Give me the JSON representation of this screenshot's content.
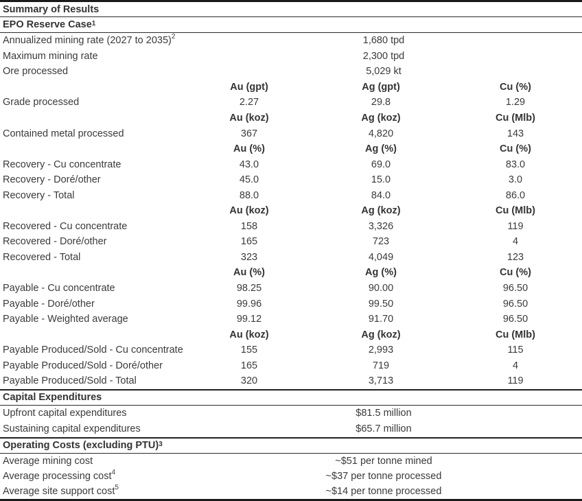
{
  "title": "Summary of Results",
  "colors": {
    "text": "#3a3a3a",
    "header_text": "#333333",
    "rule_line": "#1a1a1a",
    "background": "#ffffff"
  },
  "sections": [
    {
      "header": "EPO Reserve Case",
      "header_sup": "1",
      "rows": [
        {
          "type": "single",
          "label": "Annualized mining rate (2027 to 2035)",
          "sup": "2",
          "value": "1,680 tpd"
        },
        {
          "type": "single",
          "label": "Maximum mining rate",
          "value": "2,300 tpd"
        },
        {
          "type": "single",
          "label": "Ore processed",
          "value": "5,029 kt"
        },
        {
          "type": "units",
          "values": [
            "Au (gpt)",
            "Ag (gpt)",
            "Cu (%)"
          ]
        },
        {
          "type": "data",
          "label": "Grade processed",
          "values": [
            "2.27",
            "29.8",
            "1.29"
          ]
        },
        {
          "type": "units",
          "values": [
            "Au (koz)",
            "Ag (koz)",
            "Cu (Mlb)"
          ]
        },
        {
          "type": "data",
          "label": "Contained metal processed",
          "values": [
            "367",
            "4,820",
            "143"
          ]
        },
        {
          "type": "units",
          "values": [
            "Au (%)",
            "Ag (%)",
            "Cu (%)"
          ]
        },
        {
          "type": "data",
          "label": "Recovery - Cu concentrate",
          "values": [
            "43.0",
            "69.0",
            "83.0"
          ]
        },
        {
          "type": "data",
          "label": "Recovery - Doré/other",
          "values": [
            "45.0",
            "15.0",
            "3.0"
          ]
        },
        {
          "type": "data",
          "label": "Recovery - Total",
          "values": [
            "88.0",
            "84.0",
            "86.0"
          ]
        },
        {
          "type": "units",
          "values": [
            "Au (koz)",
            "Ag (koz)",
            "Cu (Mlb)"
          ]
        },
        {
          "type": "data",
          "label": "Recovered - Cu concentrate",
          "values": [
            "158",
            "3,326",
            "119"
          ]
        },
        {
          "type": "data",
          "label": "Recovered - Doré/other",
          "values": [
            "165",
            "723",
            "4"
          ]
        },
        {
          "type": "data",
          "label": "Recovered - Total",
          "values": [
            "323",
            "4,049",
            "123"
          ]
        },
        {
          "type": "units",
          "values": [
            "Au (%)",
            "Ag (%)",
            "Cu (%)"
          ]
        },
        {
          "type": "data",
          "label": "Payable - Cu concentrate",
          "values": [
            "98.25",
            "90.00",
            "96.50"
          ]
        },
        {
          "type": "data",
          "label": "Payable - Doré/other",
          "values": [
            "99.96",
            "99.50",
            "96.50"
          ]
        },
        {
          "type": "data",
          "label": "Payable - Weighted average",
          "values": [
            "99.12",
            "91.70",
            "96.50"
          ]
        },
        {
          "type": "units",
          "values": [
            "Au (koz)",
            "Ag (koz)",
            "Cu (Mlb)"
          ]
        },
        {
          "type": "data",
          "label": "Payable Produced/Sold - Cu concentrate",
          "values": [
            "155",
            "2,993",
            "115"
          ]
        },
        {
          "type": "data",
          "label": "Payable Produced/Sold - Doré/other",
          "values": [
            "165",
            "719",
            "4"
          ]
        },
        {
          "type": "data",
          "label": "Payable Produced/Sold - Total",
          "values": [
            "320",
            "3,713",
            "119"
          ]
        }
      ]
    },
    {
      "header": "Capital Expenditures",
      "rows": [
        {
          "type": "single",
          "label": "Upfront capital expenditures",
          "value": "$81.5 million"
        },
        {
          "type": "single",
          "label": "Sustaining capital expenditures",
          "value": "$65.7 million"
        }
      ]
    },
    {
      "header": "Operating Costs (excluding PTU)",
      "header_sup": "3",
      "rows": [
        {
          "type": "single",
          "label": "Average mining cost",
          "value": "~$51 per tonne mined"
        },
        {
          "type": "single",
          "label": "Average processing cost",
          "sup": "4",
          "value": "~$37 per tonne processed"
        },
        {
          "type": "single",
          "label": "Average site support cost",
          "sup": "5",
          "value": "~$14 per tonne processed"
        }
      ]
    }
  ]
}
